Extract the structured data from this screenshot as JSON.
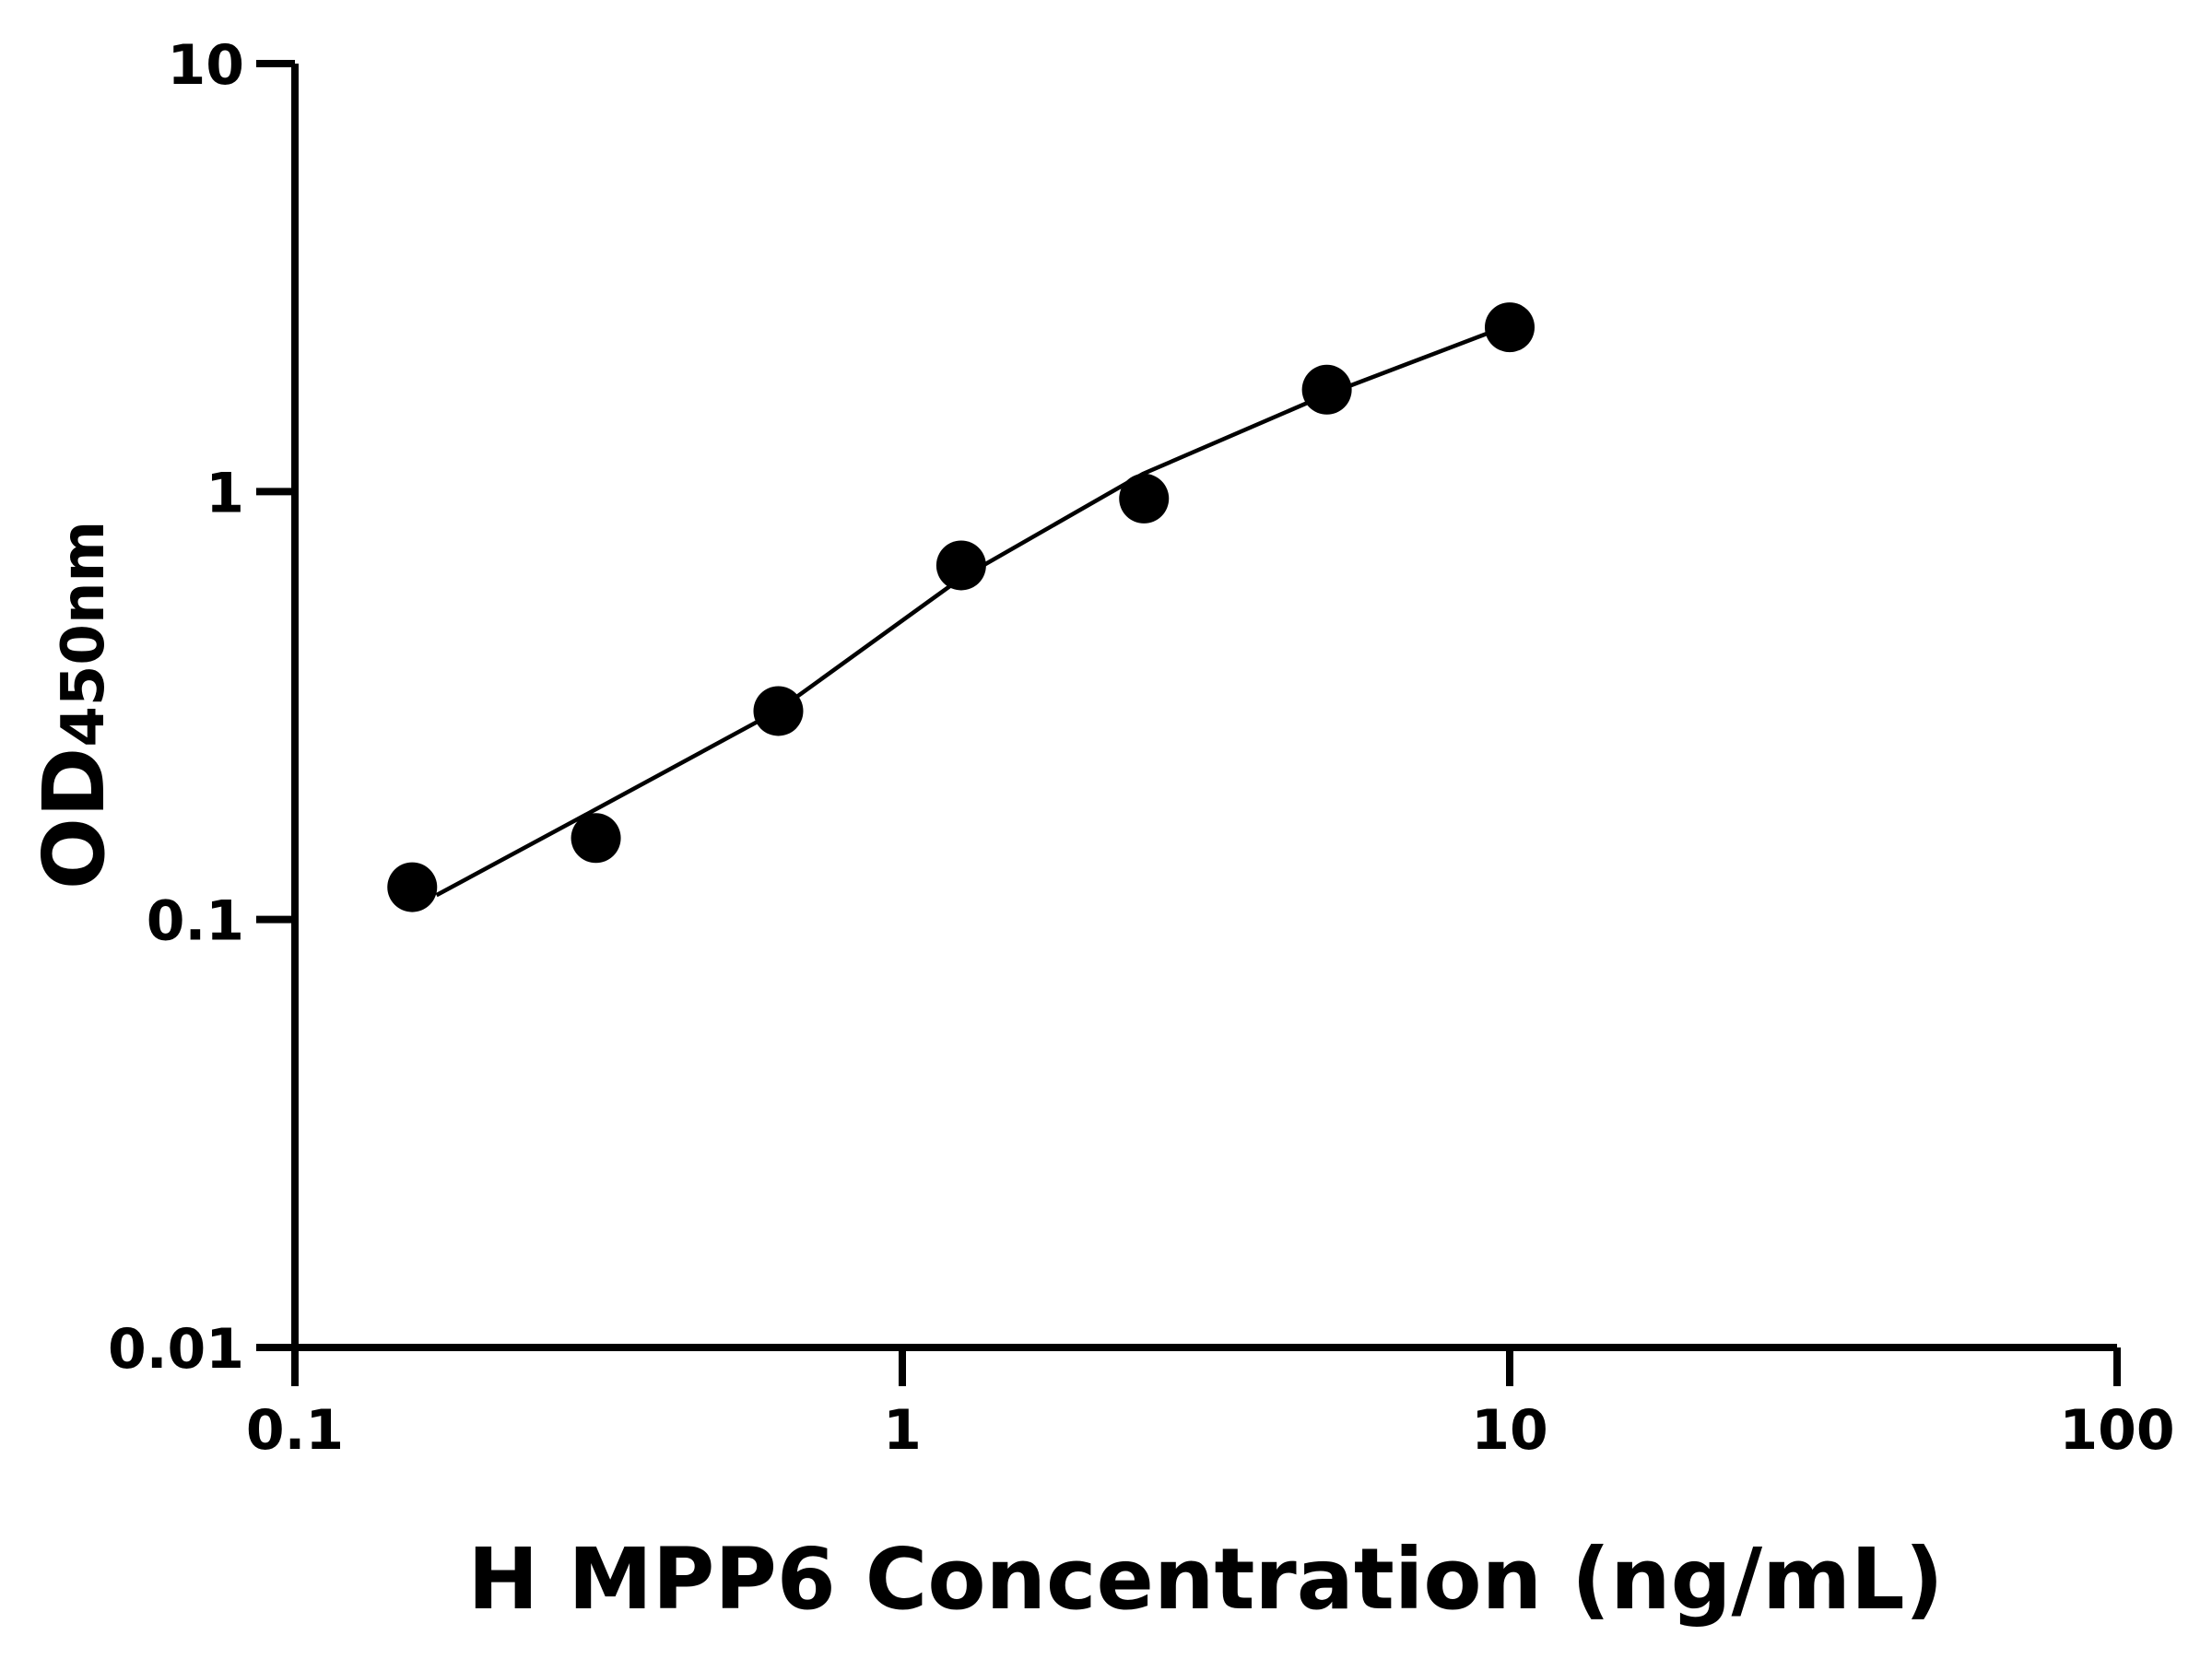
{
  "chart_data": {
    "type": "scatter",
    "log_x": true,
    "log_y": true,
    "x_label": "H MPP6 Concentration (ng/mL)",
    "y_label": "OD",
    "y_label_subscript": "450nm",
    "xlim": [
      0.1,
      100
    ],
    "xticks": [
      0.1,
      1,
      10,
      100
    ],
    "ylim": [
      0.01,
      10
    ],
    "yticks": [
      0.01,
      0.1,
      1,
      10
    ],
    "series": [
      {
        "type": "scatter",
        "color": "#000000",
        "x": [
          0.156,
          0.313,
          0.625,
          1.25,
          2.5,
          5,
          10
        ],
        "values": [
          0.119,
          0.155,
          0.307,
          0.672,
          0.963,
          1.73,
          2.42
        ]
      },
      {
        "type": "line",
        "color": "#000000",
        "x": [
          0.171,
          0.313,
          0.622,
          1.25,
          2.49,
          4.97,
          9.18
        ],
        "values": [
          0.114,
          0.181,
          0.307,
          0.628,
          1.1,
          1.68,
          2.34
        ]
      }
    ]
  }
}
